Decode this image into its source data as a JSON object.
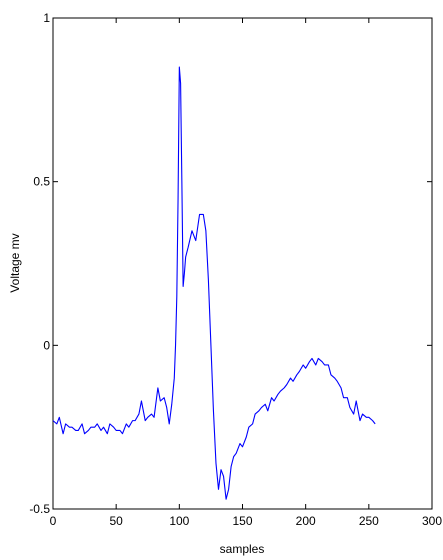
{
  "chart_data": {
    "type": "line",
    "title": "",
    "xlabel": "samples",
    "ylabel": "Voltage mv",
    "xlim": [
      0,
      300
    ],
    "ylim": [
      -0.5,
      1
    ],
    "xticks": [
      0,
      50,
      100,
      150,
      200,
      250,
      300
    ],
    "yticks": [
      -0.5,
      0,
      0.5,
      1
    ],
    "xtick_labels": [
      "0",
      "50",
      "100",
      "150",
      "200",
      "250",
      "300"
    ],
    "ytick_labels": [
      "-0.5",
      "0",
      "0.5",
      "1"
    ],
    "grid": false,
    "line_color": "#0000ff",
    "series": [
      {
        "x": [
          0,
          3,
          5,
          8,
          10,
          13,
          15,
          18,
          20,
          23,
          25,
          28,
          30,
          33,
          35,
          38,
          40,
          43,
          45,
          48,
          50,
          53,
          55,
          58,
          60,
          63,
          65,
          68,
          70,
          73,
          75,
          78,
          80,
          83,
          85,
          88,
          90,
          92,
          94,
          96,
          97,
          98,
          99,
          100,
          101,
          102,
          103,
          104,
          105,
          107,
          110,
          113,
          116,
          119,
          121,
          123,
          125,
          127,
          129,
          131,
          133,
          135,
          137,
          139,
          141,
          143,
          145,
          148,
          150,
          153,
          155,
          158,
          160,
          163,
          165,
          168,
          170,
          173,
          175,
          178,
          180,
          183,
          185,
          188,
          190,
          193,
          195,
          198,
          200,
          203,
          205,
          208,
          210,
          213,
          215,
          218,
          220,
          223,
          225,
          228,
          230,
          233,
          235,
          238,
          240,
          243,
          245,
          248,
          250,
          253,
          255
        ],
        "y": [
          -0.23,
          -0.24,
          -0.22,
          -0.27,
          -0.24,
          -0.25,
          -0.25,
          -0.26,
          -0.26,
          -0.24,
          -0.27,
          -0.26,
          -0.25,
          -0.25,
          -0.24,
          -0.26,
          -0.25,
          -0.27,
          -0.24,
          -0.25,
          -0.26,
          -0.26,
          -0.27,
          -0.24,
          -0.25,
          -0.23,
          -0.23,
          -0.21,
          -0.17,
          -0.23,
          -0.22,
          -0.21,
          -0.22,
          -0.13,
          -0.17,
          -0.16,
          -0.19,
          -0.24,
          -0.18,
          -0.1,
          0.0,
          0.15,
          0.45,
          0.85,
          0.8,
          0.5,
          0.18,
          0.22,
          0.27,
          0.3,
          0.35,
          0.32,
          0.4,
          0.4,
          0.35,
          0.2,
          0.0,
          -0.2,
          -0.36,
          -0.44,
          -0.38,
          -0.4,
          -0.47,
          -0.44,
          -0.37,
          -0.34,
          -0.33,
          -0.3,
          -0.31,
          -0.28,
          -0.25,
          -0.24,
          -0.21,
          -0.2,
          -0.19,
          -0.18,
          -0.2,
          -0.16,
          -0.17,
          -0.15,
          -0.14,
          -0.13,
          -0.12,
          -0.1,
          -0.11,
          -0.09,
          -0.08,
          -0.06,
          -0.07,
          -0.05,
          -0.04,
          -0.06,
          -0.04,
          -0.05,
          -0.06,
          -0.06,
          -0.09,
          -0.1,
          -0.11,
          -0.13,
          -0.16,
          -0.16,
          -0.19,
          -0.21,
          -0.17,
          -0.23,
          -0.21,
          -0.22,
          -0.22,
          -0.23,
          -0.24
        ]
      }
    ]
  }
}
